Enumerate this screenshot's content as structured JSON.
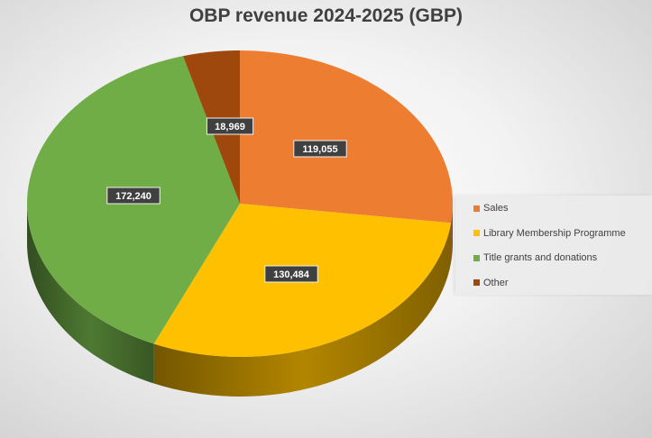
{
  "chart_data": {
    "type": "pie",
    "style": "3d",
    "title": "OBP revenue 2024-2025 (GBP)",
    "categories": [
      "Sales",
      "Library Membership Programme",
      "Title grants and donations",
      "Other"
    ],
    "values": [
      119055,
      130484,
      172240,
      18969
    ],
    "data_labels": [
      "119,055",
      "130,484",
      "172,240",
      "18,969"
    ],
    "colors": [
      "#ED7D31",
      "#FFC000",
      "#70AD47",
      "#9E480E"
    ],
    "legend_placement": "right"
  }
}
